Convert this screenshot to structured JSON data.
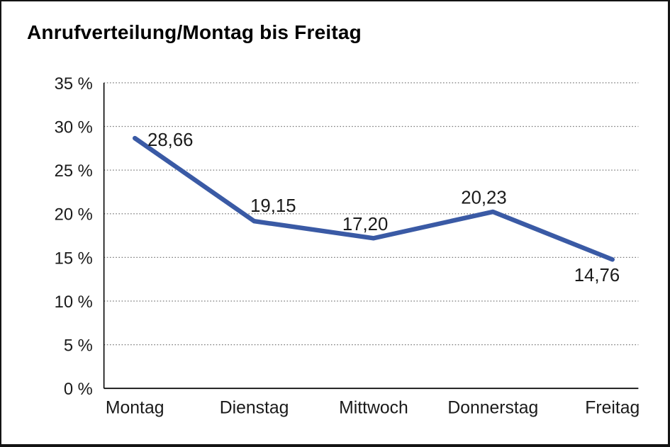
{
  "chart_data": {
    "type": "line",
    "title": "Anrufverteilung/Montag bis Freitag",
    "categories": [
      "Montag",
      "Dienstag",
      "Mittwoch",
      "Donnerstag",
      "Freitag"
    ],
    "series": [
      {
        "name": "Anrufverteilung",
        "values": [
          28.66,
          19.15,
          17.2,
          20.23,
          14.76
        ]
      }
    ],
    "value_labels": [
      "28,66",
      "19,15",
      "17,20",
      "20,23",
      "14,76"
    ],
    "y_tick_labels": [
      "35 %",
      "30 %",
      "25 %",
      "20 %",
      "15 %",
      "10 %",
      "5 %",
      "0 %"
    ],
    "ylim": [
      0,
      35
    ],
    "y_step": 5,
    "xlabel": "",
    "ylabel": "",
    "legend": "none",
    "grid": "horizontal-dotted",
    "line_color": "#3A5AA5"
  }
}
